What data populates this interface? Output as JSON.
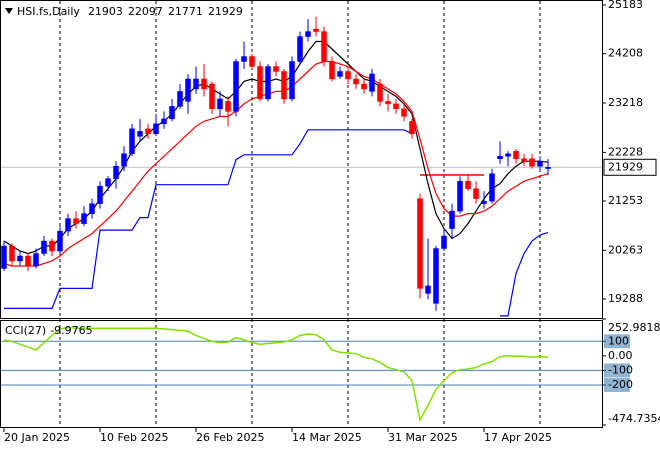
{
  "chart_data": {
    "type": "candlestick",
    "title": "HSI.fs,Daily",
    "categories": [
      "20 Jan 2025",
      null,
      null,
      null,
      null,
      null,
      null,
      null,
      null,
      null,
      null,
      null,
      "10 Feb 2025",
      null,
      null,
      null,
      null,
      null,
      null,
      null,
      null,
      null,
      null,
      null,
      "26 Feb 2025",
      null,
      null,
      null,
      null,
      null,
      null,
      null,
      null,
      null,
      null,
      null,
      "14 Mar 2025",
      null,
      null,
      null,
      null,
      null,
      null,
      null,
      null,
      null,
      null,
      null,
      "31 Mar 2025",
      null,
      null,
      null,
      null,
      null,
      null,
      null,
      null,
      null,
      null,
      null,
      "17 Apr 2025",
      null,
      null,
      null,
      null,
      null,
      null,
      null,
      null
    ],
    "open": [
      19900,
      20350,
      20050,
      20150,
      19950,
      20200,
      20450,
      20250,
      20650,
      20900,
      20800,
      21000,
      21200,
      21550,
      21700,
      21950,
      22200,
      22550,
      22700,
      22600,
      22800,
      22900,
      23150,
      23250,
      23500,
      23700,
      23600,
      23100,
      23250,
      23050,
      24050,
      24150,
      23950,
      23300,
      23950,
      23850,
      23300,
      24050,
      24550,
      24700,
      24650,
      24050,
      23750,
      23850,
      23700,
      23600,
      23450,
      23600,
      23250,
      23200,
      23100,
      22850,
      21300,
      19400,
      19200,
      20300,
      20700,
      21050,
      21650,
      21500,
      21200,
      21250,
      22100,
      22150,
      22250,
      22100,
      22100,
      21950,
      21903
    ],
    "high": [
      20450,
      20400,
      20250,
      20200,
      20300,
      20550,
      20500,
      20750,
      21000,
      21050,
      21150,
      21300,
      21650,
      21750,
      22050,
      22350,
      22800,
      22900,
      22800,
      23000,
      23050,
      23300,
      23600,
      23800,
      23950,
      24000,
      23650,
      23450,
      23350,
      24100,
      24450,
      24200,
      24050,
      24000,
      24050,
      23900,
      24150,
      24650,
      24900,
      24950,
      24750,
      24150,
      23950,
      23950,
      23800,
      23700,
      23900,
      23700,
      23400,
      23300,
      23200,
      22900,
      21400,
      20500,
      20350,
      20700,
      21200,
      21750,
      21800,
      21650,
      21450,
      21900,
      22450,
      22250,
      22300,
      22200,
      22200,
      22150,
      22097
    ],
    "low": [
      19850,
      19950,
      19950,
      19850,
      19900,
      20150,
      20150,
      20200,
      20550,
      20700,
      20750,
      20900,
      21100,
      21450,
      21500,
      21850,
      22150,
      22450,
      22500,
      22550,
      22700,
      22850,
      23100,
      23000,
      23400,
      23350,
      23000,
      22950,
      22750,
      22950,
      23900,
      23900,
      23250,
      23250,
      23750,
      23200,
      23250,
      24000,
      24450,
      24550,
      23950,
      23650,
      23700,
      23600,
      23500,
      23400,
      23350,
      23150,
      23050,
      23000,
      22850,
      22500,
      19300,
      19280,
      19050,
      20250,
      20500,
      21000,
      21450,
      21200,
      21100,
      21200,
      22000,
      21950,
      22000,
      21950,
      21900,
      21850,
      21771
    ],
    "close": [
      20350,
      20050,
      20150,
      19950,
      20200,
      20450,
      20250,
      20650,
      20900,
      20800,
      21000,
      21200,
      21550,
      21700,
      21950,
      22200,
      22700,
      22650,
      22600,
      22800,
      22900,
      23150,
      23450,
      23700,
      23700,
      23500,
      23100,
      23300,
      23050,
      24050,
      24150,
      23950,
      23300,
      23950,
      23850,
      23300,
      24050,
      24550,
      24650,
      24650,
      24050,
      23700,
      23850,
      23700,
      23600,
      23500,
      23800,
      23250,
      23200,
      23100,
      22950,
      22600,
      19500,
      19550,
      20300,
      20550,
      21050,
      21650,
      21500,
      21300,
      21250,
      21800,
      22150,
      22200,
      22100,
      22050,
      21950,
      22050,
      21929
    ],
    "up_color": "#0000ff",
    "down_color": "#ff0000",
    "ylim": [
      18907,
      25283
    ],
    "yticks": [
      25183,
      24208,
      23218,
      22228,
      21253,
      20263,
      19288
    ],
    "lines": [
      {
        "color": "#000000",
        "values": [
          20450,
          20350,
          20250,
          20200,
          20250,
          20350,
          20350,
          20500,
          20700,
          20800,
          20900,
          21050,
          21300,
          21500,
          21700,
          21950,
          22250,
          22450,
          22600,
          22750,
          22850,
          23000,
          23200,
          23400,
          23550,
          23600,
          23500,
          23400,
          23300,
          23450,
          23650,
          23700,
          23650,
          23650,
          23700,
          23650,
          23750,
          24000,
          24250,
          24450,
          24450,
          24300,
          24150,
          24000,
          23850,
          23700,
          23650,
          23550,
          23450,
          23350,
          23200,
          23000,
          22300,
          21600,
          21000,
          20700,
          20500,
          20600,
          20800,
          21050,
          21300,
          21500,
          21600,
          21800,
          21950,
          22050,
          22050,
          22050,
          22030
        ]
      },
      {
        "color": "#ff0000",
        "values": [
          20000,
          19950,
          19950,
          19950,
          19950,
          20000,
          20050,
          20150,
          20300,
          20400,
          20500,
          20600,
          20750,
          20900,
          21050,
          21250,
          21450,
          21650,
          21850,
          22000,
          22150,
          22300,
          22450,
          22600,
          22750,
          22850,
          22900,
          22950,
          22950,
          23050,
          23200,
          23300,
          23350,
          23400,
          23450,
          23450,
          23550,
          23700,
          23850,
          24000,
          24050,
          24050,
          24000,
          23950,
          23850,
          23750,
          23700,
          23600,
          23500,
          23400,
          23250,
          23050,
          22500,
          21900,
          21400,
          21100,
          20950,
          20950,
          21000,
          21000,
          21050,
          21150,
          21300,
          21450,
          21550,
          21650,
          21700,
          21750,
          21800
        ]
      },
      {
        "color": "#0000ff",
        "values": [
          19100,
          19100,
          19100,
          19100,
          19100,
          19100,
          19100,
          19500,
          19500,
          19500,
          19500,
          19500,
          20670,
          20670,
          20670,
          20670,
          20670,
          20920,
          20920,
          21580,
          21580,
          21580,
          21580,
          21580,
          21580,
          21580,
          21580,
          21580,
          21580,
          22080,
          22180,
          22180,
          22180,
          22180,
          22180,
          22180,
          22180,
          22400,
          22680,
          22680,
          22680,
          22680,
          22680,
          22680,
          22680,
          22680,
          22680,
          22680,
          22680,
          22680,
          22680,
          22600,
          null,
          null,
          null,
          null,
          null,
          null,
          null,
          null,
          null,
          null,
          18950,
          18950,
          19800,
          20200,
          20450,
          20570,
          20620
        ]
      }
    ],
    "hline": {
      "value": 21774,
      "color": "#ff0000"
    },
    "last_line_color": "#c0c0c0",
    "cci": {
      "name": "CCI(27)",
      "color": "#7fe000",
      "values": [
        110,
        100,
        80,
        60,
        40,
        90,
        140,
        185,
        195,
        190,
        190,
        190,
        190,
        190,
        190,
        190,
        190,
        190,
        190,
        190,
        185,
        180,
        175,
        170,
        140,
        120,
        100,
        90,
        95,
        125,
        110,
        90,
        80,
        85,
        90,
        95,
        110,
        140,
        150,
        145,
        110,
        40,
        25,
        20,
        15,
        -10,
        -20,
        -45,
        -80,
        -95,
        -110,
        -170,
        -440,
        -340,
        -230,
        -170,
        -115,
        -95,
        -90,
        -80,
        -55,
        -40,
        -5,
        0,
        -3,
        -3,
        -10,
        -5,
        -9.9765
      ],
      "ylim": [
        -474.7354,
        252.9818
      ],
      "yticks": [
        {
          "value": 252.9818,
          "label": "252.9818"
        },
        100,
        {
          "value": 0,
          "label": "0.00"
        },
        -100,
        -200,
        {
          "value": -474.7354,
          "label": "-474.7354"
        }
      ],
      "levels": [
        100,
        -100,
        -200
      ],
      "level_color": "#4682b4"
    }
  }
}
